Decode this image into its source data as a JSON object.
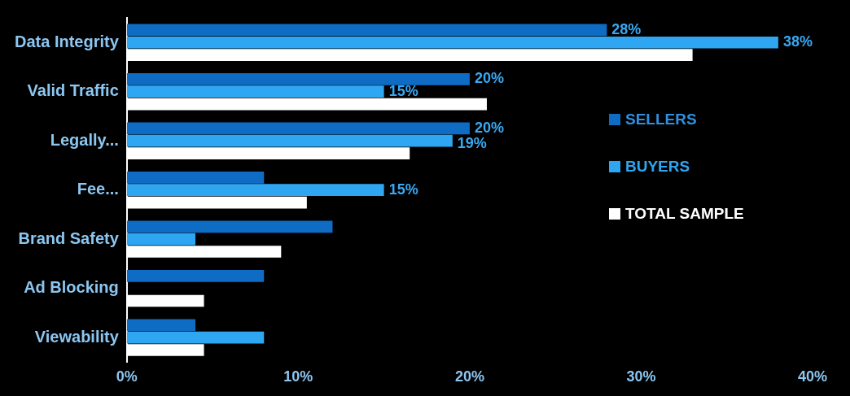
{
  "chart_data": {
    "type": "bar",
    "orientation": "horizontal",
    "categories": [
      "Data Integrity",
      "Valid Traffic",
      "Legally...",
      "Fee...",
      "Brand Safety",
      "Ad Blocking",
      "Viewability"
    ],
    "series": [
      {
        "name": "SELLERS",
        "color": "#0f6cc4",
        "values": [
          28,
          20,
          20,
          8,
          12,
          8,
          4
        ],
        "value_labels": [
          "28%",
          "20%",
          "20%",
          null,
          null,
          null,
          null
        ]
      },
      {
        "name": "BUYERS",
        "color": "#2ea6f2",
        "values": [
          38,
          15,
          19,
          15,
          4,
          0,
          8
        ],
        "value_labels": [
          "38%",
          "15%",
          "19%",
          "15%",
          null,
          null,
          null
        ]
      },
      {
        "name": "TOTAL SAMPLE",
        "color": "#ffffff",
        "values": [
          33,
          21,
          16.5,
          10.5,
          9,
          4.5,
          4.5
        ]
      }
    ],
    "xlim": [
      0,
      40
    ],
    "xticks": [
      {
        "value": 0,
        "label": "0%"
      },
      {
        "value": 10,
        "label": "10%"
      },
      {
        "value": 20,
        "label": "20%"
      },
      {
        "value": 30,
        "label": "30%"
      },
      {
        "value": 40,
        "label": "40%"
      }
    ],
    "grid": false,
    "legend": "right",
    "data_labels": true
  }
}
